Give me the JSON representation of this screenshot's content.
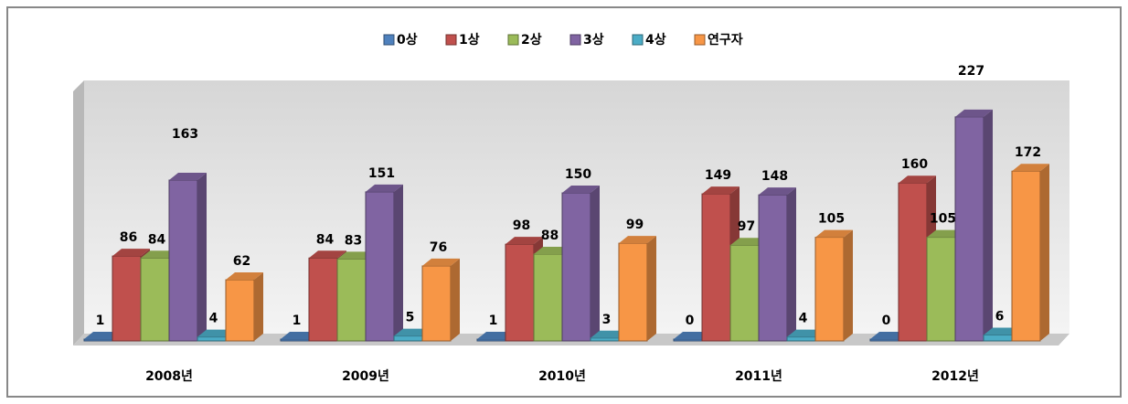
{
  "chart_data": {
    "type": "bar3d",
    "categories": [
      "2008년",
      "2009년",
      "2010년",
      "2011년",
      "2012년"
    ],
    "series": [
      {
        "name": "0상",
        "color": "#4f81bd",
        "values": [
          1,
          1,
          1,
          0,
          0
        ]
      },
      {
        "name": "1상",
        "color": "#c0504d",
        "values": [
          86,
          84,
          98,
          149,
          160
        ]
      },
      {
        "name": "2상",
        "color": "#9bbb59",
        "values": [
          84,
          83,
          88,
          97,
          105
        ]
      },
      {
        "name": "3상",
        "color": "#8064a2",
        "values": [
          163,
          151,
          150,
          148,
          227
        ]
      },
      {
        "name": "4상",
        "color": "#4bacc6",
        "values": [
          4,
          5,
          3,
          4,
          6
        ]
      },
      {
        "name": "연구자",
        "color": "#f79646",
        "values": [
          62,
          76,
          99,
          105,
          172
        ]
      }
    ],
    "legend": "top"
  }
}
